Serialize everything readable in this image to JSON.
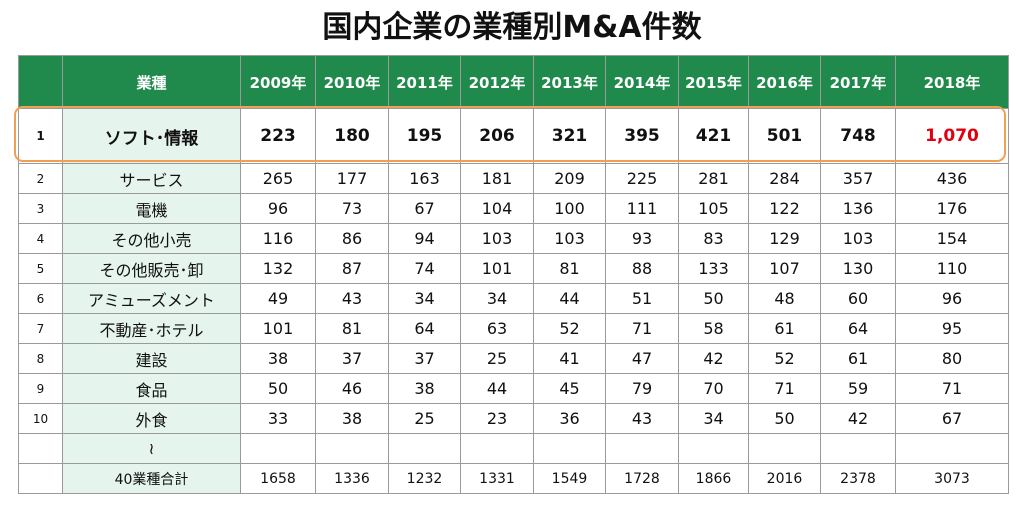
{
  "title": "国内企業の業種別M&A件数",
  "table": {
    "header": [
      null,
      "業種",
      "2009年",
      "2010年",
      "2011年",
      "2012年",
      "2013年",
      "2014年",
      "2015年",
      "2016年",
      "2017年",
      "2018年"
    ],
    "rows": [
      [
        "1",
        "ソフト･情報",
        "223",
        "180",
        "195",
        "206",
        "321",
        "395",
        "421",
        "501",
        "748",
        "1,070"
      ],
      [
        "2",
        "サービス",
        "265",
        "177",
        "163",
        "181",
        "209",
        "225",
        "281",
        "284",
        "357",
        "436"
      ],
      [
        "3",
        "電機",
        "96",
        "73",
        "67",
        "104",
        "100",
        "111",
        "105",
        "122",
        "136",
        "176"
      ],
      [
        "4",
        "その他小売",
        "116",
        "86",
        "94",
        "103",
        "103",
        "93",
        "83",
        "129",
        "103",
        "154"
      ],
      [
        "5",
        "その他販売･卸",
        "132",
        "87",
        "74",
        "101",
        "81",
        "88",
        "133",
        "107",
        "130",
        "110"
      ],
      [
        "6",
        "アミューズメント",
        "49",
        "43",
        "34",
        "34",
        "44",
        "51",
        "50",
        "48",
        "60",
        "96"
      ],
      [
        "7",
        "不動産･ホテル",
        "101",
        "81",
        "64",
        "63",
        "52",
        "71",
        "58",
        "61",
        "64",
        "95"
      ],
      [
        "8",
        "建設",
        "38",
        "37",
        "37",
        "25",
        "41",
        "47",
        "42",
        "52",
        "61",
        "80"
      ],
      [
        "9",
        "食品",
        "50",
        "46",
        "38",
        "44",
        "45",
        "79",
        "70",
        "71",
        "59",
        "71"
      ],
      [
        "10",
        "外食",
        "33",
        "38",
        "25",
        "23",
        "36",
        "43",
        "34",
        "50",
        "42",
        "67"
      ],
      [
        null,
        "≀",
        null,
        null,
        null,
        null,
        null,
        null,
        null,
        null,
        null,
        null
      ],
      [
        null,
        "40業種合計",
        "1658",
        "1336",
        "1232",
        "1331",
        "1549",
        "1728",
        "1866",
        "2016",
        "2378",
        "3073"
      ]
    ]
  }
}
